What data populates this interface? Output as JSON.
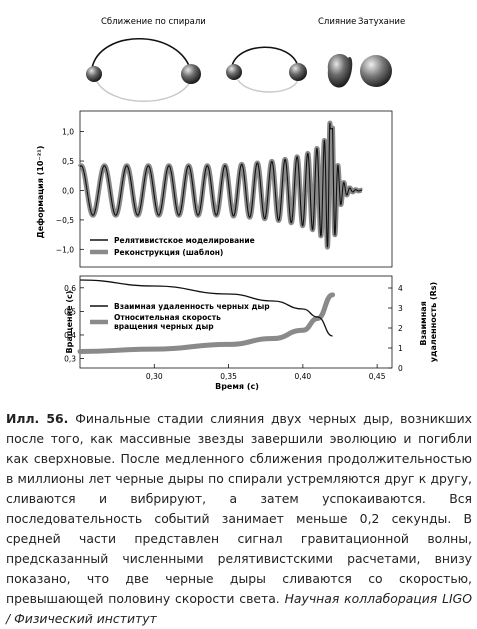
{
  "stages": {
    "inspiral": "Сближение по спирали",
    "merger": "Слияние",
    "ringdown": "Затухание"
  },
  "chart_data": [
    {
      "type": "line",
      "ylabel": "Деформация (10⁻²¹)",
      "yticks": [
        "1,0",
        "0,5",
        "0,0",
        "−0,5",
        "−1,0"
      ],
      "ylim": [
        -1.3,
        1.35
      ],
      "xlim": [
        0.25,
        0.46
      ],
      "series": [
        {
          "name": "Релятивистское моделирование",
          "color": "#111111"
        },
        {
          "name": "Реконструкция (шаблон)",
          "color": "#8a8a8a"
        }
      ],
      "waveform": {
        "t_merge": 0.42,
        "t_start": 0.25,
        "t_end": 0.44,
        "peak": 1.2
      }
    },
    {
      "type": "line",
      "xlabel": "Время (с)",
      "ylabel_left": "Вращение (с)",
      "ylabel_right": "Взаимная удаленность (Rs)",
      "xticks": [
        "0,30",
        "0,35",
        "0,40",
        "0,45"
      ],
      "xtick_values": [
        0.3,
        0.35,
        0.4,
        0.45
      ],
      "yticks_left": [
        "0,6",
        "0,5",
        "0,4",
        "0,3"
      ],
      "yticks_left_values": [
        0.6,
        0.5,
        0.4,
        0.3
      ],
      "yticks_right": [
        "4",
        "3",
        "2",
        "1",
        "0"
      ],
      "yticks_right_values": [
        4,
        3,
        2,
        1,
        0
      ],
      "ylim_left": [
        0.26,
        0.65
      ],
      "ylim_right": [
        0,
        4.6
      ],
      "series": [
        {
          "name": "Взаимная удаленность черных дыр",
          "color": "#111111",
          "x": [
            0.25,
            0.3,
            0.35,
            0.38,
            0.4,
            0.41,
            0.42
          ],
          "y": [
            4.4,
            4.1,
            3.7,
            3.35,
            2.95,
            2.55,
            1.6
          ]
        },
        {
          "name": "Относительная скорость вращения черных дыр",
          "color": "#8a8a8a",
          "x": [
            0.25,
            0.3,
            0.35,
            0.38,
            0.4,
            0.41,
            0.42
          ],
          "y": [
            0.33,
            0.34,
            0.36,
            0.385,
            0.42,
            0.47,
            0.57
          ]
        }
      ]
    }
  ],
  "caption": {
    "label": "Илл. 56.",
    "text": " Финальные стадии слияния двух черных дыр, возникших после того, как массивные звезды завершили эволюцию и погибли как сверхновые. После медленного сближения продолжительностью в миллионы лет черные дыры по спирали устремляются друг к другу, сливаются и вибрируют, а затем успокаиваются. Вся последовательность событий занимает меньше 0,2 секунды. В средней части представлен сигнал гравитационной волны, предсказанный численными релятивистскими расчетами, внизу показано, что две черные дыры сливаются со скоростью, превышающей половину скорости света. ",
    "credit": "Научная коллаборация LIGO / Физический институт"
  }
}
